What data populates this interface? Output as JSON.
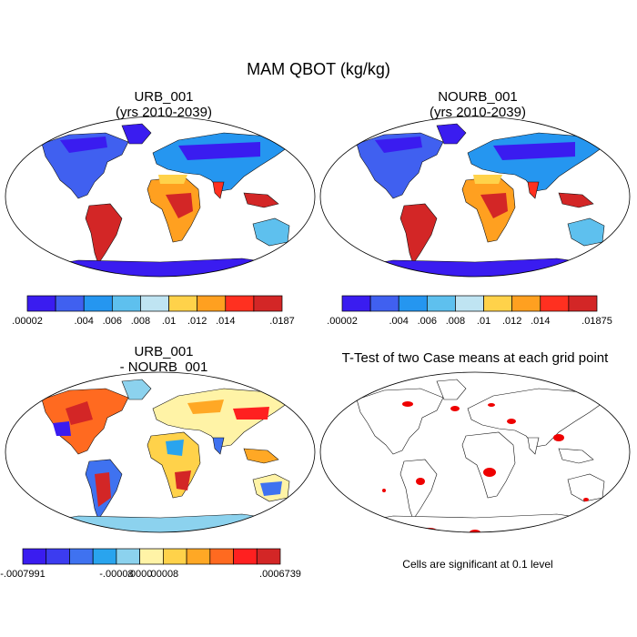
{
  "figure": {
    "title": "MAM QBOT (kg/kg)",
    "land_colors": {
      "ocean": "#ffffff",
      "coast": "#111111",
      "sig": "#ee0000"
    }
  },
  "panels": [
    {
      "id": "urb",
      "title_line1": "URB_001",
      "title_line2": "(yrs 2010-2039)",
      "colorbar": {
        "colors": [
          "#3a1cf0",
          "#4060f0",
          "#2596f0",
          "#5ec0ee",
          "#bfe4f2",
          "#ffd24a",
          "#ffa020",
          "#ff3020",
          "#d32626"
        ],
        "labels": [
          ".00002",
          ".004",
          ".006",
          ".008",
          ".01",
          ".012",
          ".014",
          ".0187"
        ]
      }
    },
    {
      "id": "nourb",
      "title_line1": "NOURB_001",
      "title_line2": "(yrs 2010-2039)",
      "colorbar": {
        "colors": [
          "#3a1cf0",
          "#4060f0",
          "#2596f0",
          "#5ec0ee",
          "#bfe4f2",
          "#ffd24a",
          "#ffa020",
          "#ff3020",
          "#d32626"
        ],
        "labels": [
          ".00002",
          ".004",
          ".006",
          ".008",
          ".01",
          ".012",
          ".014",
          ".01875"
        ]
      }
    },
    {
      "id": "diff",
      "title_line1": "URB_001",
      "title_line2": "- NOURB_001",
      "colorbar": {
        "colors": [
          "#3a1cf0",
          "#3c3cf0",
          "#3f72f0",
          "#29a4ee",
          "#8cd2ee",
          "#fff3a6",
          "#ffd24a",
          "#ffa825",
          "#ff6a20",
          "#ff2020",
          "#d32626"
        ],
        "labels": [
          "-.0007991",
          "-.00008",
          ".0000",
          ".00008",
          ".0006739"
        ]
      }
    },
    {
      "id": "ttest",
      "title_line1": "T-Test of two Case means at each grid point",
      "note": "Cells are significant at 0.1 level"
    }
  ]
}
